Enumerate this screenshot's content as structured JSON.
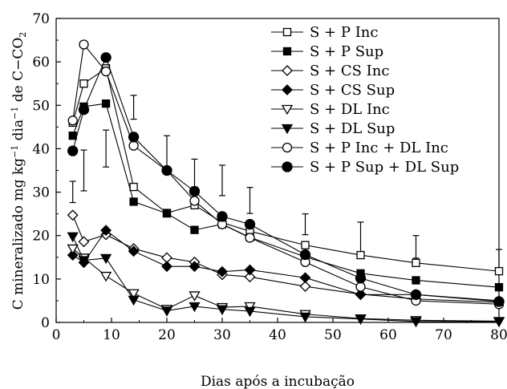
{
  "chart_data": {
    "type": "line",
    "xlabel": "Dias após a incubação",
    "ylabel": "C mineralizado mg kg",
    "ylabel_sup1": "−1",
    "ylabel_mid": " dia",
    "ylabel_sup2": "−1",
    "ylabel_tail": " de C−CO",
    "ylabel_sub": "2",
    "xlim": [
      0,
      80
    ],
    "ylim": [
      0,
      70
    ],
    "x_ticks": [
      0,
      10,
      20,
      30,
      40,
      50,
      60,
      70,
      80
    ],
    "y_ticks": [
      0,
      10,
      20,
      30,
      40,
      50,
      60,
      70
    ],
    "x": [
      3,
      5,
      9,
      14,
      20,
      25,
      30,
      35,
      45,
      55,
      65,
      80
    ],
    "series": [
      {
        "name": "S + P Inc",
        "marker": "square",
        "filled": false,
        "values": [
          46,
          55,
          58.5,
          31.2,
          25.2,
          27,
          23,
          21,
          17.8,
          15.5,
          13.7,
          11.8
        ]
      },
      {
        "name": "S + P Sup",
        "marker": "square",
        "filled": true,
        "values": [
          43,
          49.7,
          50.4,
          27.8,
          25.1,
          21.3,
          22.6,
          19.6,
          15.1,
          11.3,
          9.7,
          8.1
        ]
      },
      {
        "name": "S + CS Inc",
        "marker": "diamond",
        "filled": false,
        "values": [
          24.7,
          18.6,
          20.2,
          17,
          14.9,
          13.9,
          11,
          10.5,
          8.3,
          6.5,
          5.4,
          4.6
        ]
      },
      {
        "name": "S + CS Sup",
        "marker": "diamond",
        "filled": true,
        "values": [
          15.5,
          13.8,
          21.2,
          16.4,
          12.9,
          12.9,
          11.7,
          12.1,
          10.3,
          6.4,
          6.4,
          5
        ]
      },
      {
        "name": "S + DL Inc",
        "marker": "triangle-down",
        "filled": false,
        "values": [
          17,
          14.9,
          10.7,
          6.7,
          3.1,
          6.2,
          3.5,
          3.7,
          1.9,
          0.9,
          0.5,
          0.3
        ]
      },
      {
        "name": "S + DL Sup",
        "marker": "triangle-down",
        "filled": true,
        "values": [
          19.8,
          14.3,
          14.8,
          5.2,
          2.7,
          3.7,
          3,
          2.6,
          1.3,
          0.8,
          0.2,
          0.2
        ]
      },
      {
        "name": "S + P Inc + DL Inc",
        "marker": "circle",
        "filled": false,
        "values": [
          46.5,
          64,
          57.8,
          40.7,
          35,
          28,
          22.6,
          19.5,
          13.9,
          8.2,
          5,
          4.2
        ]
      },
      {
        "name": "S + P Sup + DL Sup",
        "marker": "circle",
        "filled": true,
        "values": [
          39.5,
          49,
          61,
          42.7,
          35,
          30.2,
          24.4,
          22.6,
          15.6,
          10.2,
          6.4,
          4.8
        ]
      }
    ],
    "error_bars": [
      {
        "x": 3,
        "low": 27.6,
        "high": 32.5
      },
      {
        "x": 5,
        "low": 30.3,
        "high": 39.7
      },
      {
        "x": 9,
        "low": 35.8,
        "high": 44.3
      },
      {
        "x": 14,
        "low": 46.8,
        "high": 52.3
      },
      {
        "x": 20,
        "low": 34.8,
        "high": 43
      },
      {
        "x": 25,
        "low": 31.2,
        "high": 37.6
      },
      {
        "x": 30,
        "low": 29.2,
        "high": 36.2
      },
      {
        "x": 35,
        "low": 25.1,
        "high": 31.1
      },
      {
        "x": 45,
        "low": 20.2,
        "high": 25
      },
      {
        "x": 55,
        "low": 16.3,
        "high": 23.1
      },
      {
        "x": 65,
        "low": 14.8,
        "high": 20
      },
      {
        "x": 80,
        "low": 12.3,
        "high": 16.8
      }
    ],
    "legend_position": "top-right",
    "grid": false
  }
}
